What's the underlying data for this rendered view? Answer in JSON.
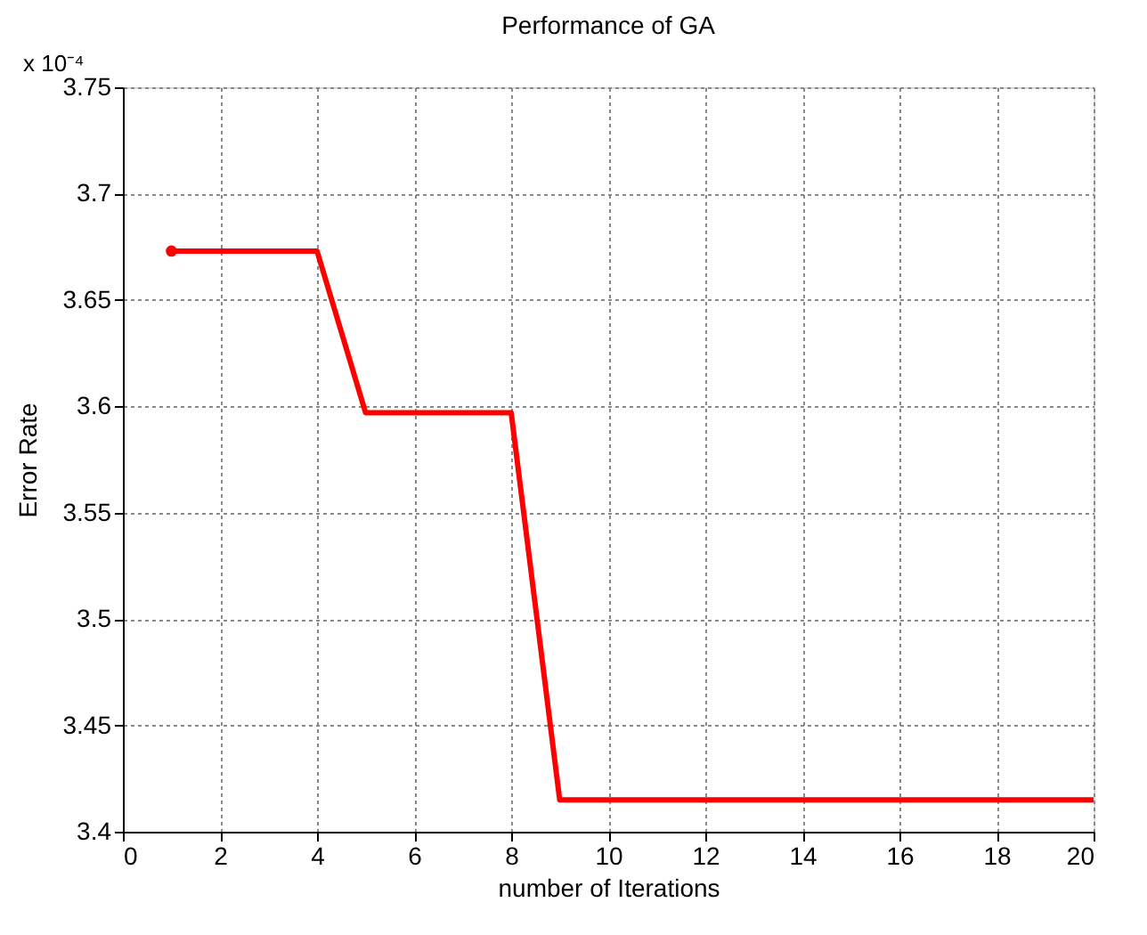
{
  "chart_data": {
    "type": "line",
    "title": "Performance of GA",
    "xlabel": "number of Iterations",
    "ylabel": "Error Rate",
    "annotations": [
      "x 10⁻⁴"
    ],
    "x": [
      1,
      2,
      3,
      4,
      5,
      6,
      7,
      8,
      9,
      10,
      11,
      12,
      13,
      14,
      15,
      16,
      17,
      18,
      19,
      20
    ],
    "series": [
      {
        "color": "#ff0000",
        "values": [
          3.673,
          3.673,
          3.673,
          3.673,
          3.597,
          3.597,
          3.597,
          3.597,
          3.415,
          3.415,
          3.415,
          3.415,
          3.415,
          3.415,
          3.415,
          3.415,
          3.415,
          3.415,
          3.415,
          3.415
        ],
        "line_style": "solid",
        "marker": "none"
      },
      {
        "type": "scatter",
        "color": "#ff0000",
        "x": [
          1
        ],
        "values": [
          3.673
        ],
        "marker": "circle"
      }
    ],
    "xlim": [
      0,
      20
    ],
    "xticks": [
      0,
      2,
      4,
      6,
      8,
      10,
      12,
      14,
      16,
      18,
      20
    ],
    "ylim": [
      3.4,
      3.75
    ],
    "yticks": [
      3.4,
      3.45,
      3.5,
      3.55,
      3.6,
      3.65,
      3.7,
      3.75
    ],
    "grid": true
  }
}
